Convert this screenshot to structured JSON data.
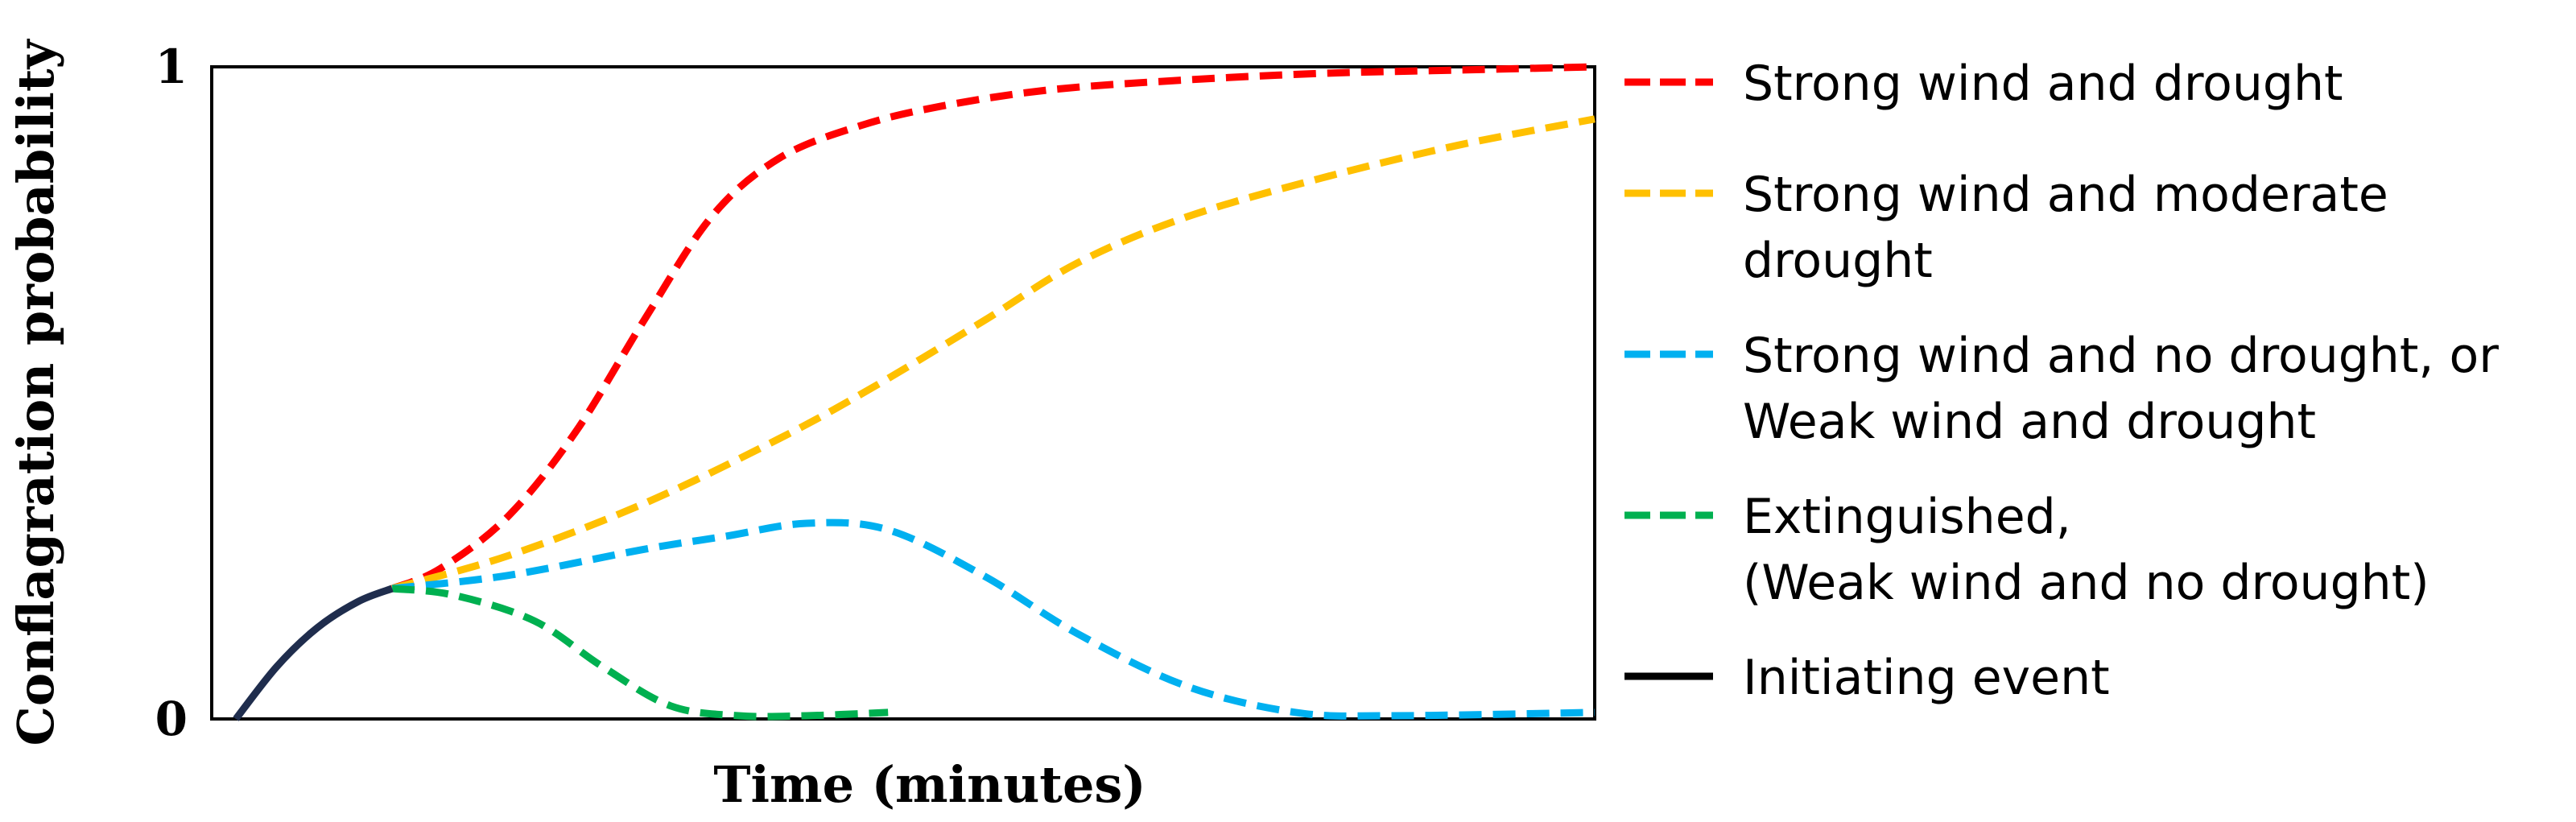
{
  "chart_data": {
    "type": "line",
    "title": "",
    "xlabel": "Time (minutes)",
    "ylabel": "Conflagration probability",
    "xlim": [
      0,
      100
    ],
    "ylim": [
      0,
      1
    ],
    "y_ticks": [
      {
        "value": 0,
        "label": "0"
      },
      {
        "value": 1,
        "label": "1"
      }
    ],
    "grid": false,
    "legend_position": "right",
    "series": [
      {
        "name": "Strong wind and drought",
        "color": "#ff0000",
        "style": "dashed",
        "points": [
          [
            11.5,
            0.2
          ],
          [
            15,
            0.23
          ],
          [
            20,
            0.31
          ],
          [
            25,
            0.44
          ],
          [
            30,
            0.61
          ],
          [
            35,
            0.77
          ],
          [
            40,
            0.86
          ],
          [
            46,
            0.91
          ],
          [
            52,
            0.94
          ],
          [
            60,
            0.965
          ],
          [
            70,
            0.98
          ],
          [
            80,
            0.99
          ],
          [
            90,
            0.995
          ],
          [
            100,
            1.0
          ]
        ]
      },
      {
        "name": "Strong wind and moderate drought",
        "color": "#ffc000",
        "style": "dashed",
        "points": [
          [
            11.5,
            0.2
          ],
          [
            20,
            0.25
          ],
          [
            30,
            0.33
          ],
          [
            40,
            0.43
          ],
          [
            47,
            0.51
          ],
          [
            55,
            0.61
          ],
          [
            62,
            0.7
          ],
          [
            70,
            0.77
          ],
          [
            80,
            0.83
          ],
          [
            90,
            0.88
          ],
          [
            100,
            0.92
          ]
        ]
      },
      {
        "name": "Strong wind and no drought, or\nWeak wind and drought",
        "color": "#00b0f0",
        "style": "dashed",
        "points": [
          [
            11.5,
            0.2
          ],
          [
            20,
            0.22
          ],
          [
            30,
            0.26
          ],
          [
            36,
            0.28
          ],
          [
            42,
            0.3
          ],
          [
            48,
            0.29
          ],
          [
            55,
            0.22
          ],
          [
            62,
            0.13
          ],
          [
            70,
            0.05
          ],
          [
            78,
            0.01
          ],
          [
            85,
            0.005
          ],
          [
            100,
            0.01
          ]
        ]
      },
      {
        "name": "Extinguished,\n(Weak wind and no drought)",
        "color": "#00b050",
        "style": "dashed",
        "points": [
          [
            11.5,
            0.2
          ],
          [
            16,
            0.19
          ],
          [
            22,
            0.15
          ],
          [
            27,
            0.08
          ],
          [
            32,
            0.02
          ],
          [
            37,
            0.005
          ],
          [
            42,
            0.005
          ],
          [
            48,
            0.01
          ]
        ]
      },
      {
        "name": "Initiating event",
        "color": "#1f2d4d",
        "style": "solid",
        "points": [
          [
            0,
            0
          ],
          [
            3,
            0.08
          ],
          [
            6,
            0.14
          ],
          [
            9,
            0.18
          ],
          [
            11.5,
            0.2
          ]
        ]
      }
    ],
    "legend_entries": [
      {
        "lines": [
          "Strong wind and drought"
        ],
        "color": "#ff0000",
        "style": "dashed"
      },
      {
        "lines": [
          "Strong wind and moderate",
          "drought"
        ],
        "color": "#ffc000",
        "style": "dashed"
      },
      {
        "lines": [
          "Strong wind and no drought, or",
          "Weak wind and drought"
        ],
        "color": "#00b0f0",
        "style": "dashed"
      },
      {
        "lines": [
          "Extinguished,",
          "(Weak wind and no drought)"
        ],
        "color": "#00b050",
        "style": "dashed"
      },
      {
        "lines": [
          "Initiating event"
        ],
        "color": "#000000",
        "style": "solid"
      }
    ]
  }
}
